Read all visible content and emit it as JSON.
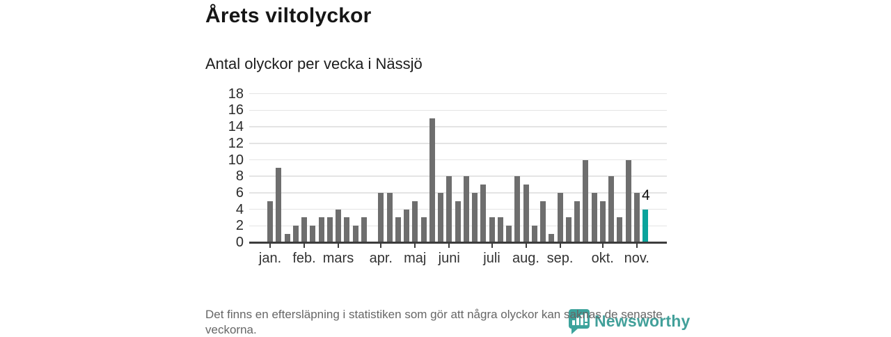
{
  "header": {
    "title": "Årets viltolyckor",
    "subtitle": "Antal olyckor per vecka i Nässjö"
  },
  "footer": {
    "note": "Det finns en eftersläpning i statistiken som gör att några olyckor kan saknas de senaste veckorna.",
    "brand": "Newsworthy"
  },
  "colors": {
    "bar": "#6e6e6e",
    "highlight": "#0aa49c",
    "grid": "#e4e4e4",
    "axis": "#3c3c3c",
    "brand_icon": "#3da39c",
    "brand_text": "#42a09a"
  },
  "chart_data": {
    "type": "bar",
    "title": "Årets viltolyckor",
    "subtitle": "Antal olyckor per vecka i Nässjö",
    "xlabel": "",
    "ylabel": "",
    "x_unit": "week",
    "weeks": [
      1,
      2,
      3,
      4,
      5,
      6,
      7,
      8,
      9,
      10,
      11,
      12,
      13,
      14,
      15,
      16,
      17,
      18,
      19,
      20,
      21,
      22,
      23,
      24,
      25,
      26,
      27,
      28,
      29,
      30,
      31,
      32,
      33,
      34,
      35,
      36,
      37,
      38,
      39,
      40,
      41,
      42,
      43,
      44,
      45
    ],
    "values": [
      5,
      9,
      1,
      2,
      3,
      2,
      3,
      3,
      4,
      3,
      2,
      3,
      0,
      6,
      6,
      3,
      4,
      5,
      3,
      15,
      6,
      8,
      5,
      8,
      6,
      7,
      3,
      3,
      2,
      8,
      7,
      2,
      5,
      1,
      6,
      3,
      5,
      10,
      6,
      5,
      8,
      3,
      10,
      6,
      4
    ],
    "highlight_last": true,
    "last_label": "4",
    "ylim": [
      0,
      18
    ],
    "yticks": [
      0,
      2,
      4,
      6,
      8,
      10,
      12,
      14,
      16,
      18
    ],
    "grid": true,
    "legend": "none",
    "month_ticks": [
      {
        "label": "jan.",
        "week": 1
      },
      {
        "label": "feb.",
        "week": 5
      },
      {
        "label": "mars",
        "week": 9
      },
      {
        "label": "apr.",
        "week": 14
      },
      {
        "label": "maj",
        "week": 18
      },
      {
        "label": "juni",
        "week": 22
      },
      {
        "label": "juli",
        "week": 27
      },
      {
        "label": "aug.",
        "week": 31
      },
      {
        "label": "sep.",
        "week": 35
      },
      {
        "label": "okt.",
        "week": 40
      },
      {
        "label": "nov.",
        "week": 44
      }
    ]
  }
}
